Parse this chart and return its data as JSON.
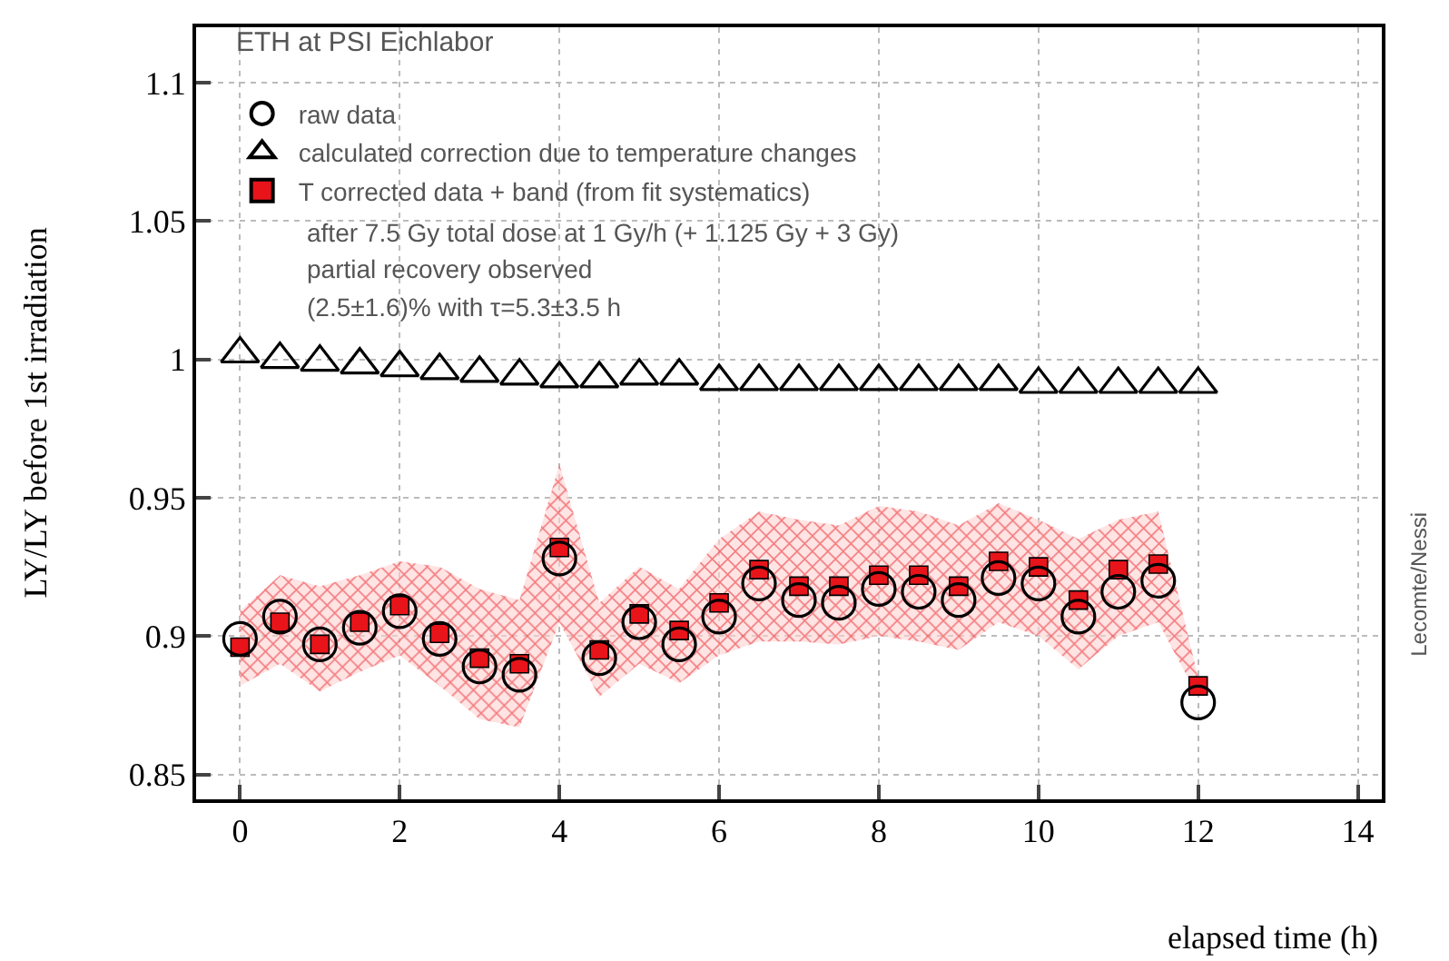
{
  "chart_data": {
    "type": "scatter",
    "xlabel": "elapsed time (h)",
    "ylabel": "LY/LY before 1st irradiation",
    "legend_title": "ETH at PSI Eichlabor",
    "x": [
      0,
      0.5,
      1,
      1.5,
      2,
      2.5,
      3,
      3.5,
      4,
      4.5,
      5,
      5.5,
      6,
      6.5,
      7,
      7.5,
      8,
      8.5,
      9,
      9.5,
      10,
      10.5,
      11,
      11.5,
      12
    ],
    "series": [
      {
        "name": "raw data",
        "color": "#000000",
        "marker": "circle",
        "values": [
          0.899,
          0.907,
          0.897,
          0.903,
          0.909,
          0.899,
          0.889,
          0.886,
          0.928,
          0.892,
          0.905,
          0.897,
          0.907,
          0.919,
          0.913,
          0.912,
          0.917,
          0.916,
          0.913,
          0.921,
          0.919,
          0.907,
          0.916,
          0.92,
          0.876
        ]
      },
      {
        "name": "calculated correction due to temperature changes",
        "color": "#000000",
        "marker": "triangle",
        "values": [
          1.002,
          1.0,
          0.999,
          0.998,
          0.997,
          0.996,
          0.995,
          0.994,
          0.993,
          0.993,
          0.994,
          0.994,
          0.992,
          0.992,
          0.992,
          0.992,
          0.992,
          0.992,
          0.992,
          0.992,
          0.991,
          0.991,
          0.991,
          0.991,
          0.991
        ]
      },
      {
        "name": "T corrected data + band (from fit systematics)",
        "color": "#e8141a",
        "marker": "square",
        "values": [
          0.896,
          0.905,
          0.897,
          0.905,
          0.911,
          0.901,
          0.892,
          0.89,
          0.932,
          0.895,
          0.908,
          0.902,
          0.912,
          0.924,
          0.918,
          0.918,
          0.922,
          0.922,
          0.918,
          0.927,
          0.925,
          0.913,
          0.924,
          0.926,
          0.882
        ],
        "upper": [
          0.909,
          0.922,
          0.918,
          0.922,
          0.927,
          0.925,
          0.917,
          0.913,
          0.962,
          0.912,
          0.925,
          0.917,
          0.935,
          0.945,
          0.942,
          0.94,
          0.947,
          0.945,
          0.94,
          0.948,
          0.942,
          0.935,
          0.942,
          0.945,
          0.885
        ],
        "lower": [
          0.882,
          0.89,
          0.88,
          0.887,
          0.893,
          0.882,
          0.87,
          0.867,
          0.905,
          0.878,
          0.89,
          0.883,
          0.893,
          0.898,
          0.898,
          0.897,
          0.9,
          0.898,
          0.895,
          0.905,
          0.9,
          0.888,
          0.9,
          0.905,
          0.878
        ]
      }
    ],
    "xlim": [
      -0.55,
      14.3
    ],
    "xticks": [
      0,
      2,
      4,
      6,
      8,
      10,
      12,
      14
    ],
    "ylim": [
      0.841,
      1.12
    ],
    "yticks": [
      0.85,
      0.9,
      0.95,
      1,
      1.05,
      1.1
    ],
    "grid": true,
    "legend": "top left",
    "annotations": [
      "after 7.5 Gy total dose at 1 Gy/h (+ 1.125 Gy + 3 Gy)",
      "partial recovery observed",
      "(2.5±1.6)% with τ=5.3±3.5 h",
      "Lecomte/Nessi"
    ]
  }
}
